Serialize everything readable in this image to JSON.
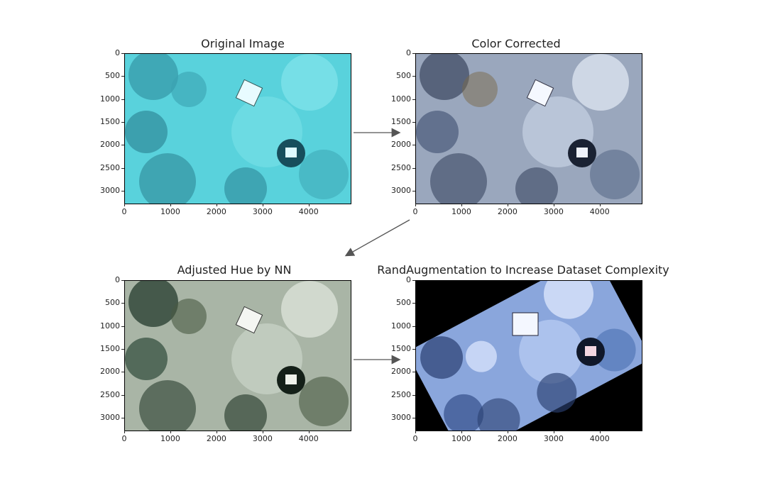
{
  "panels": [
    {
      "title": "Original Image",
      "style": "original"
    },
    {
      "title": "Color Corrected",
      "style": "corrected"
    },
    {
      "title": "Adjusted Hue by NN",
      "style": "hue"
    },
    {
      "title": "RandAugmentation to Increase Dataset Complexity",
      "style": "randaug"
    }
  ],
  "y_ticks": [
    "0",
    "500",
    "1000",
    "1500",
    "2000",
    "2500",
    "3000"
  ],
  "x_ticks": [
    "0",
    "1000",
    "2000",
    "3000",
    "4000"
  ],
  "colors": {
    "original": [
      "#4fd3de",
      "#2a8a9a",
      "#7fe6ee",
      "#1f6f80",
      "#9ff0f5"
    ],
    "corrected": [
      "#5f6f88",
      "#c9d4e6",
      "#8a7a55",
      "#3a4a66",
      "#e8eef8"
    ],
    "hue": [
      "#2f4a3a",
      "#c7d0c8",
      "#5a6b55",
      "#1f3428",
      "#e6ece4"
    ],
    "randaug": [
      "#4a6fb0",
      "#dfe9ff",
      "#2a3f70",
      "#8fb2f0",
      "#000000"
    ]
  }
}
